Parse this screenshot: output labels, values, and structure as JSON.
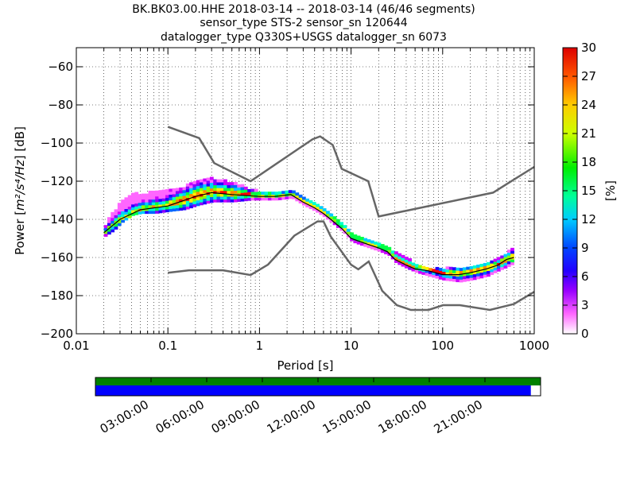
{
  "title": {
    "line1": "BK.BK03.00.HHE   2018-03-14 -- 2018-03-14  (46/46 segments)",
    "line2": "sensor_type STS-2 sensor_sn 120644",
    "line3": "datalogger_type Q330S+USGS datalogger_sn 6073"
  },
  "colors": {
    "model_curves": "#666666",
    "mode_line": "#000000",
    "coverage_full": "#008000",
    "coverage_data": "#0000ff"
  },
  "chart_data": {
    "type": "heatmap",
    "plot": "probabilistic power spectral density",
    "xlabel": "Period [s]",
    "ylabel_prefix": "Power [",
    "ylabel_math": "m²/s⁴/Hz",
    "ylabel_suffix": "] [dB]",
    "xscale": "log",
    "xlim": [
      0.01,
      1000
    ],
    "ylim": [
      -200,
      -50
    ],
    "x_ticks": [
      {
        "value": 0.01,
        "label": "0.01"
      },
      {
        "value": 0.1,
        "label": "0.1"
      },
      {
        "value": 1,
        "label": "1"
      },
      {
        "value": 10,
        "label": "10"
      },
      {
        "value": 100,
        "label": "100"
      },
      {
        "value": 1000,
        "label": "1000"
      }
    ],
    "y_ticks": [
      {
        "value": -60,
        "label": "−60"
      },
      {
        "value": -80,
        "label": "−80"
      },
      {
        "value": -100,
        "label": "−100"
      },
      {
        "value": -120,
        "label": "−120"
      },
      {
        "value": -140,
        "label": "−140"
      },
      {
        "value": -160,
        "label": "−160"
      },
      {
        "value": -180,
        "label": "−180"
      },
      {
        "value": -200,
        "label": "−200"
      }
    ],
    "grid": true,
    "colorbar": {
      "label": "[%]",
      "range": [
        0,
        30
      ],
      "ticks": [
        {
          "value": 0,
          "label": "0"
        },
        {
          "value": 3,
          "label": "3"
        },
        {
          "value": 6,
          "label": "6"
        },
        {
          "value": 9,
          "label": "9"
        },
        {
          "value": 12,
          "label": "12"
        },
        {
          "value": 15,
          "label": "15"
        },
        {
          "value": 18,
          "label": "18"
        },
        {
          "value": 21,
          "label": "21"
        },
        {
          "value": 24,
          "label": "24"
        },
        {
          "value": 27,
          "label": "27"
        },
        {
          "value": 30,
          "label": "30"
        }
      ]
    },
    "high_noise_model": {
      "periods": [
        0.1,
        0.22,
        0.32,
        0.8,
        3.8,
        4.6,
        6.3,
        7.9,
        15.4,
        20,
        354.8,
        1000
      ],
      "power": [
        -91.5,
        -97.4,
        -110.5,
        -120,
        -98,
        -96.5,
        -101,
        -113.5,
        -120,
        -138.5,
        -126,
        -112.5
      ]
    },
    "low_noise_model": {
      "periods": [
        0.1,
        0.17,
        0.4,
        0.8,
        1.24,
        2.4,
        4.3,
        5,
        6,
        10,
        12,
        15.6,
        21.9,
        31.6,
        45,
        70,
        101,
        154,
        328,
        600,
        1000
      ],
      "power": [
        -168,
        -166.7,
        -166.7,
        -169.2,
        -163.7,
        -148.6,
        -141.1,
        -141.1,
        -149,
        -163.8,
        -166.2,
        -162.1,
        -177.5,
        -185,
        -187.5,
        -187.5,
        -185,
        -185,
        -187.5,
        -184.4,
        -178
      ]
    },
    "mode": {
      "periods": [
        0.02,
        0.03,
        0.05,
        0.1,
        0.2,
        0.3,
        0.5,
        1,
        1.5,
        2.2,
        3,
        4,
        5,
        6,
        8,
        10,
        15,
        20,
        25,
        30,
        40,
        50,
        70,
        100,
        150,
        200,
        300,
        400,
        500,
        600
      ],
      "power": [
        -147,
        -140,
        -135,
        -133,
        -128,
        -126,
        -127,
        -128,
        -128,
        -127,
        -131,
        -134,
        -137,
        -140,
        -145,
        -150,
        -153,
        -155,
        -157,
        -161,
        -164,
        -166,
        -167,
        -169,
        -169,
        -168,
        -166,
        -164,
        -161,
        -160
      ]
    },
    "ppsd_band": {
      "periods": [
        0.02,
        0.025,
        0.03,
        0.04,
        0.05,
        0.07,
        0.1,
        0.15,
        0.2,
        0.3,
        0.5,
        0.8,
        1,
        1.5,
        2.2,
        3,
        4,
        5,
        6,
        8,
        10,
        15,
        20,
        25,
        30,
        40,
        50,
        70,
        100,
        150,
        200,
        300,
        400,
        500,
        600
      ],
      "upper": [
        -143,
        -136,
        -131,
        -127,
        -127,
        -126,
        -125,
        -123,
        -120,
        -119,
        -121,
        -125,
        -126,
        -126,
        -126,
        -129,
        -132,
        -135,
        -138,
        -143,
        -148,
        -151,
        -153,
        -155,
        -158,
        -161,
        -164,
        -166,
        -166,
        -166,
        -165,
        -163,
        -161,
        -157,
        -155
      ],
      "lower": [
        -149,
        -146,
        -142,
        -138,
        -137,
        -137,
        -136,
        -135,
        -133,
        -131,
        -131,
        -130,
        -130,
        -130,
        -129,
        -133,
        -136,
        -139,
        -142,
        -147,
        -152,
        -155,
        -157,
        -159,
        -163,
        -166,
        -168,
        -170,
        -172,
        -173,
        -172,
        -170,
        -167,
        -165,
        -163
      ]
    }
  },
  "timeline": {
    "ticks": [
      "03:00:00",
      "06:00:00",
      "09:00:00",
      "12:00:00",
      "15:00:00",
      "18:00:00",
      "21:00:00"
    ],
    "data_coverage_fraction": 0.978,
    "span_hours": 24
  }
}
